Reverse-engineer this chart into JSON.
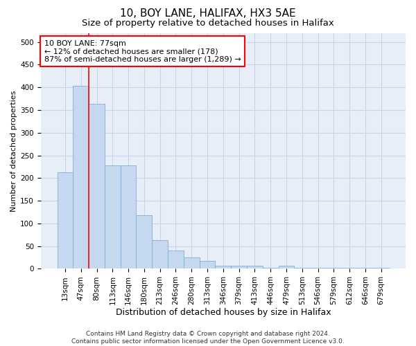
{
  "title1": "10, BOY LANE, HALIFAX, HX3 5AE",
  "title2": "Size of property relative to detached houses in Halifax",
  "xlabel": "Distribution of detached houses by size in Halifax",
  "ylabel": "Number of detached properties",
  "categories": [
    "13sqm",
    "47sqm",
    "80sqm",
    "113sqm",
    "146sqm",
    "180sqm",
    "213sqm",
    "246sqm",
    "280sqm",
    "313sqm",
    "346sqm",
    "379sqm",
    "413sqm",
    "446sqm",
    "479sqm",
    "513sqm",
    "546sqm",
    "579sqm",
    "612sqm",
    "646sqm",
    "679sqm"
  ],
  "values": [
    213,
    403,
    363,
    228,
    228,
    118,
    63,
    40,
    25,
    18,
    7,
    7,
    7,
    2,
    7,
    2,
    2,
    2,
    2,
    2,
    2
  ],
  "bar_color": "#c5d8f0",
  "bar_edge_color": "#7ab0d8",
  "annotation_text": "10 BOY LANE: 77sqm\n← 12% of detached houses are smaller (178)\n87% of semi-detached houses are larger (1,289) →",
  "annotation_box_color": "white",
  "annotation_box_edge_color": "red",
  "property_line_color": "red",
  "ylim": [
    0,
    520
  ],
  "yticks": [
    0,
    50,
    100,
    150,
    200,
    250,
    300,
    350,
    400,
    450,
    500
  ],
  "grid_color": "#c8d4e8",
  "background_color": "#e8eef8",
  "footer_text": "Contains HM Land Registry data © Crown copyright and database right 2024.\nContains public sector information licensed under the Open Government Licence v3.0.",
  "title1_fontsize": 11,
  "title2_fontsize": 9.5,
  "xlabel_fontsize": 9,
  "ylabel_fontsize": 8,
  "tick_fontsize": 7.5,
  "annotation_fontsize": 8,
  "footer_fontsize": 6.5
}
